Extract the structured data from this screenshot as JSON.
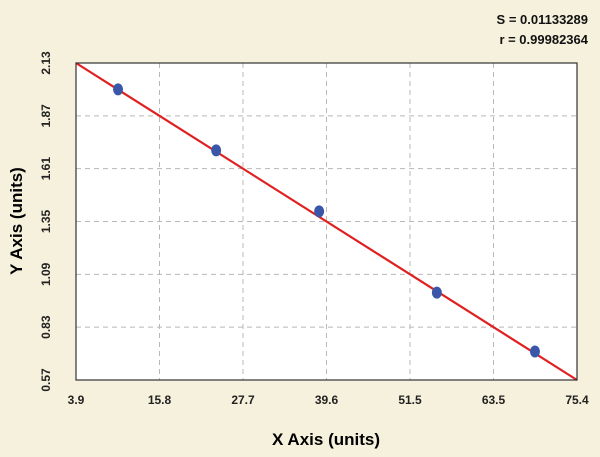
{
  "chart_data": {
    "type": "scatter",
    "stats": {
      "s_text": "S = 0.01133289",
      "r_text": "r = 0.99982364"
    },
    "xlabel": "X Axis (units)",
    "ylabel": "Y Axis (units)",
    "xlim": [
      3.9,
      75.4
    ],
    "ylim": [
      0.57,
      2.13
    ],
    "x_ticks": [
      "3.9",
      "15.8",
      "27.7",
      "39.6",
      "51.5",
      "63.5",
      "75.4"
    ],
    "y_ticks": [
      "2.13",
      "1.87",
      "1.61",
      "1.35",
      "1.09",
      "0.83",
      "0.57"
    ],
    "grid": true,
    "points": [
      {
        "x": 9.9,
        "y": 2.0
      },
      {
        "x": 23.9,
        "y": 1.7
      },
      {
        "x": 38.6,
        "y": 1.4
      },
      {
        "x": 55.4,
        "y": 1.0
      },
      {
        "x": 69.4,
        "y": 0.71
      }
    ],
    "fit_line": {
      "x": [
        3.9,
        75.4
      ],
      "y": [
        2.13,
        0.57
      ]
    },
    "colors": {
      "background": "#f5f1dc",
      "plot_background": "#ffffff",
      "points": "#3a56a8",
      "fit_line": "#e02020",
      "grid": "#b8b8b8"
    }
  }
}
